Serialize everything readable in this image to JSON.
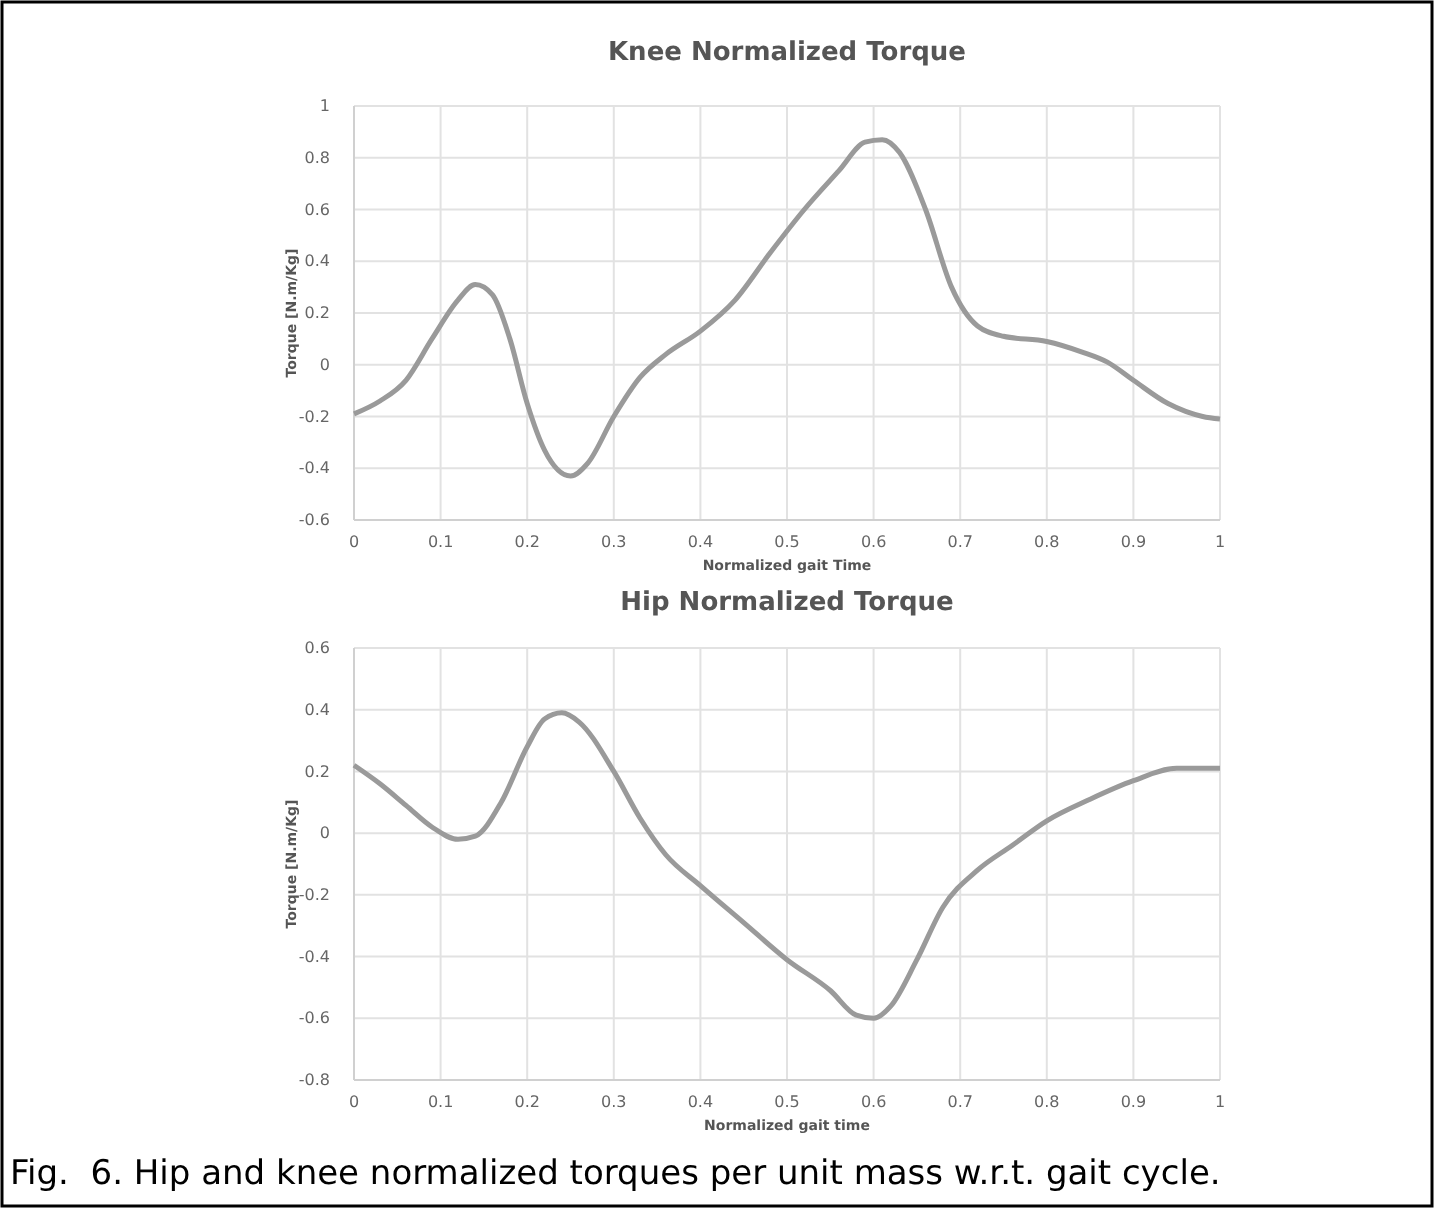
{
  "chart_data": [
    {
      "type": "line",
      "title": "Knee Normalized Torque",
      "xlabel": "Normalized gait Time",
      "ylabel": "Torque [N.m/Kg]",
      "xlim": [
        0,
        1
      ],
      "ylim": [
        -0.6,
        1
      ],
      "xticks": [
        0,
        0.1,
        0.2,
        0.3,
        0.4,
        0.5,
        0.6,
        0.7,
        0.8,
        0.9,
        1
      ],
      "yticks": [
        -0.6,
        -0.4,
        -0.2,
        0,
        0.2,
        0.4,
        0.6,
        0.8,
        1
      ],
      "grid": true,
      "series": [
        {
          "color": "#9a9a9a",
          "x": [
            0,
            0.03,
            0.06,
            0.09,
            0.12,
            0.14,
            0.16,
            0.18,
            0.2,
            0.22,
            0.25,
            0.27,
            0.3,
            0.33,
            0.36,
            0.4,
            0.44,
            0.48,
            0.52,
            0.56,
            0.59,
            0.61,
            0.63,
            0.66,
            0.69,
            0.72,
            0.75,
            0.8,
            0.84,
            0.87,
            0.9,
            0.94,
            0.98,
            1
          ],
          "values": [
            -0.19,
            -0.14,
            -0.06,
            0.1,
            0.25,
            0.31,
            0.27,
            0.1,
            -0.15,
            -0.33,
            -0.43,
            -0.38,
            -0.2,
            -0.05,
            0.04,
            0.13,
            0.25,
            0.43,
            0.6,
            0.75,
            0.86,
            0.87,
            0.82,
            0.6,
            0.3,
            0.15,
            0.11,
            0.09,
            0.05,
            0.01,
            -0.06,
            -0.15,
            -0.2,
            -0.21
          ]
        }
      ]
    },
    {
      "type": "line",
      "title": "Hip Normalized Torque",
      "xlabel": "Normalized gait time",
      "ylabel": "Torque [N.m/Kg]",
      "xlim": [
        0,
        1
      ],
      "ylim": [
        -0.8,
        0.6
      ],
      "xticks": [
        0,
        0.1,
        0.2,
        0.3,
        0.4,
        0.5,
        0.6,
        0.7,
        0.8,
        0.9,
        1
      ],
      "yticks": [
        -0.8,
        -0.6,
        -0.4,
        -0.2,
        0,
        0.2,
        0.4,
        0.6
      ],
      "grid": true,
      "annotations": [
        "Fig.  6. Hip and knee normalized torques per unit mass w.r.t. gait cycle."
      ],
      "series": [
        {
          "color": "#9a9a9a",
          "x": [
            0,
            0.03,
            0.06,
            0.09,
            0.12,
            0.14,
            0.17,
            0.2,
            0.22,
            0.24,
            0.26,
            0.3,
            0.33,
            0.36,
            0.4,
            0.45,
            0.5,
            0.55,
            0.58,
            0.6,
            0.62,
            0.65,
            0.68,
            0.72,
            0.76,
            0.8,
            0.85,
            0.9,
            0.95,
            1
          ],
          "values": [
            0.22,
            0.16,
            0.09,
            0.02,
            -0.02,
            -0.01,
            0.1,
            0.28,
            0.37,
            0.39,
            0.36,
            0.2,
            0.05,
            -0.07,
            -0.17,
            -0.29,
            -0.41,
            -0.51,
            -0.59,
            -0.6,
            -0.56,
            -0.41,
            -0.24,
            -0.12,
            -0.04,
            0.04,
            0.11,
            0.17,
            0.21,
            0.21
          ]
        }
      ]
    }
  ]
}
